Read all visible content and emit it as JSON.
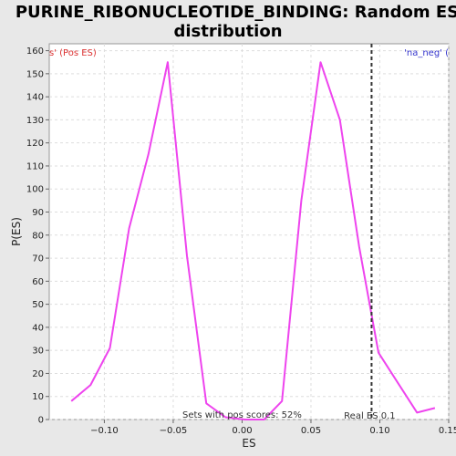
{
  "chart_data": {
    "type": "line",
    "title_line1": "PURINE_RIBONUCLEOTIDE_BINDING: Random ES",
    "title_line2": "distribution",
    "xlabel": "ES",
    "ylabel": "P(ES)",
    "xlim": [
      -0.14,
      0.15
    ],
    "ylim": [
      0,
      163
    ],
    "x_ticks": [
      -0.1,
      -0.05,
      0.0,
      0.05,
      0.1,
      0.15
    ],
    "x_tick_labels": [
      "−0.10",
      "−0.05",
      "0.00",
      "0.05",
      "0.10",
      "0.15"
    ],
    "y_ticks": [
      0,
      10,
      20,
      30,
      40,
      50,
      60,
      70,
      80,
      90,
      100,
      110,
      120,
      130,
      140,
      150,
      160
    ],
    "grid": true,
    "series": [
      {
        "color": "#ee44ee",
        "x": [
          -0.124,
          -0.11,
          -0.096,
          -0.082,
          -0.068,
          -0.054,
          -0.04,
          -0.026,
          -0.012,
          0.002,
          0.016,
          0.029,
          0.043,
          0.057,
          0.071,
          0.085,
          0.099,
          0.113,
          0.127,
          0.14
        ],
        "y": [
          8,
          15,
          31,
          83,
          115,
          155,
          71,
          7,
          1,
          0,
          0,
          8,
          95,
          155,
          130,
          75,
          29,
          16,
          3,
          5
        ]
      }
    ],
    "reference_line": {
      "x": 0.094,
      "label": "Real ES 0.1"
    },
    "annotations": {
      "top_left": "s' (Pos ES)",
      "top_right": "'na_neg' (",
      "bottom": "Sets with pos scores: 52%"
    }
  }
}
